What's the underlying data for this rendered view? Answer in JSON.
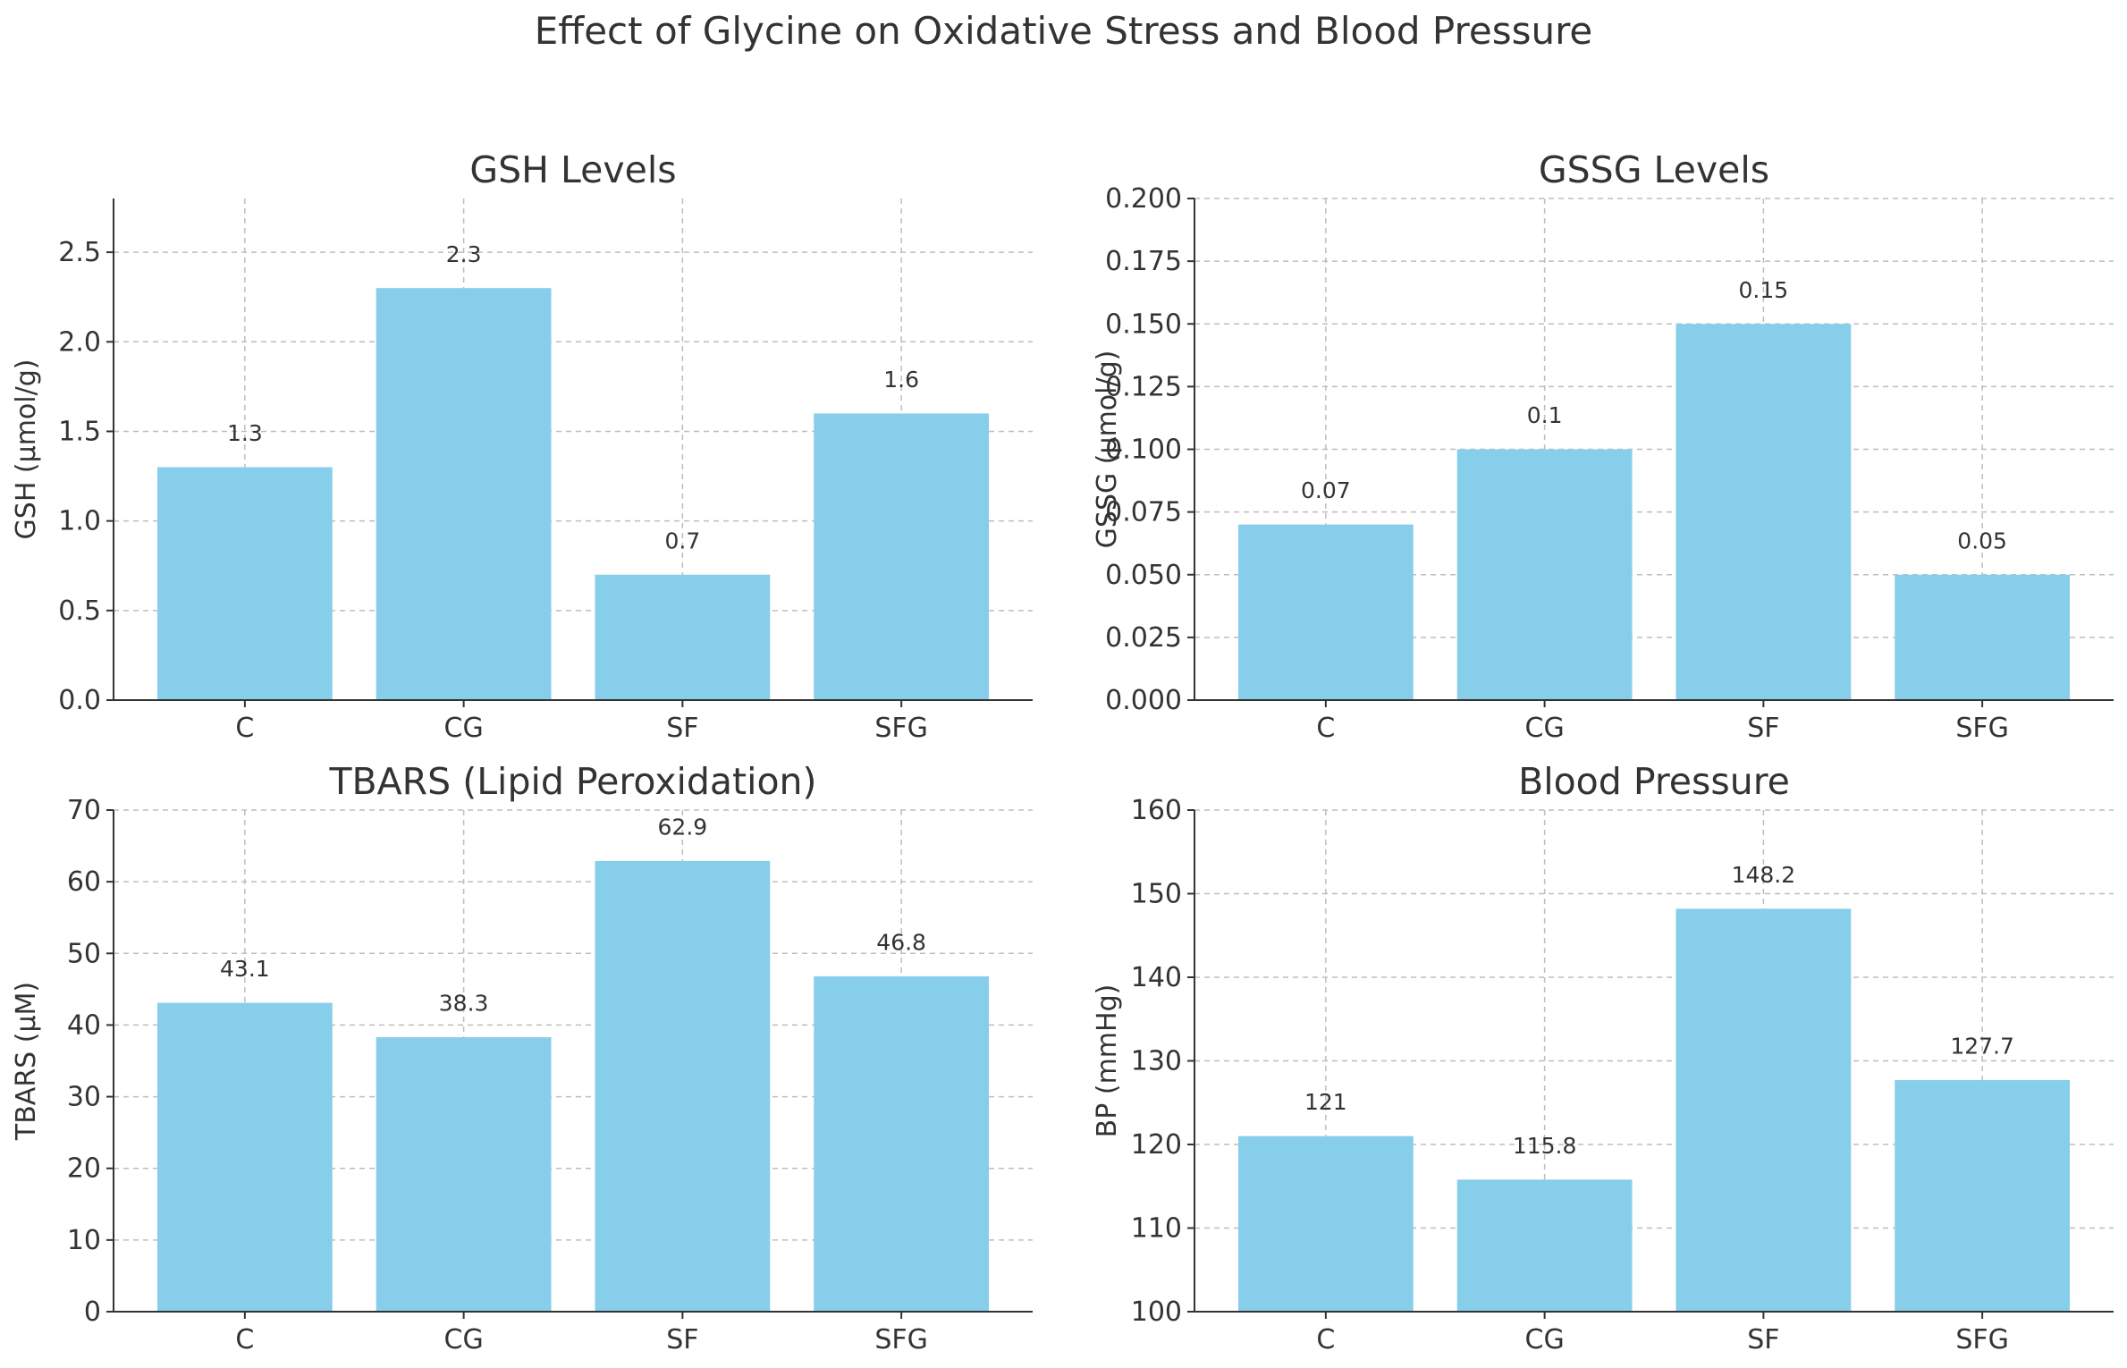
{
  "figure": {
    "title": "Effect of Glycine on Oxidative Stress and Blood Pressure"
  },
  "chart_data": [
    {
      "type": "bar",
      "title": "GSH Levels",
      "xlabel": "",
      "ylabel": "GSH (µmol/g)",
      "categories": [
        "C",
        "CG",
        "SF",
        "SFG"
      ],
      "values": [
        1.3,
        2.3,
        0.7,
        1.6
      ],
      "value_labels": [
        "1.3",
        "2.3",
        "0.7",
        "1.6"
      ],
      "ylim": [
        0,
        2.8
      ],
      "yticks": [
        0.0,
        0.5,
        1.0,
        1.5,
        2.0,
        2.5
      ],
      "ytick_labels": [
        "0.0",
        "0.5",
        "1.0",
        "1.5",
        "2.0",
        "2.5"
      ],
      "grid": true,
      "bar_color": "#87ceeb"
    },
    {
      "type": "bar",
      "title": "GSSG Levels",
      "xlabel": "",
      "ylabel": "GSSG (µmol/g)",
      "categories": [
        "C",
        "CG",
        "SF",
        "SFG"
      ],
      "values": [
        0.07,
        0.1,
        0.15,
        0.05
      ],
      "value_labels": [
        "0.07",
        "0.1",
        "0.15",
        "0.05"
      ],
      "ylim": [
        0,
        0.2
      ],
      "yticks": [
        0.0,
        0.025,
        0.05,
        0.075,
        0.1,
        0.125,
        0.15,
        0.175,
        0.2
      ],
      "ytick_labels": [
        "0.000",
        "0.025",
        "0.050",
        "0.075",
        "0.100",
        "0.125",
        "0.150",
        "0.175",
        "0.200"
      ],
      "grid": true,
      "bar_color": "#87ceeb"
    },
    {
      "type": "bar",
      "title": "TBARS (Lipid Peroxidation)",
      "xlabel": "",
      "ylabel": "TBARS (µM)",
      "categories": [
        "C",
        "CG",
        "SF",
        "SFG"
      ],
      "values": [
        43.1,
        38.3,
        62.9,
        46.8
      ],
      "value_labels": [
        "43.1",
        "38.3",
        "62.9",
        "46.8"
      ],
      "ylim": [
        0,
        70
      ],
      "yticks": [
        0,
        10,
        20,
        30,
        40,
        50,
        60,
        70
      ],
      "ytick_labels": [
        "0",
        "10",
        "20",
        "30",
        "40",
        "50",
        "60",
        "70"
      ],
      "grid": true,
      "bar_color": "#87ceeb"
    },
    {
      "type": "bar",
      "title": "Blood Pressure",
      "xlabel": "",
      "ylabel": "BP (mmHg)",
      "categories": [
        "C",
        "CG",
        "SF",
        "SFG"
      ],
      "values": [
        121,
        115.8,
        148.2,
        127.7
      ],
      "value_labels": [
        "121",
        "115.8",
        "148.2",
        "127.7"
      ],
      "ylim": [
        100,
        160
      ],
      "yticks": [
        100,
        110,
        120,
        130,
        140,
        150,
        160
      ],
      "ytick_labels": [
        "100",
        "110",
        "120",
        "130",
        "140",
        "150",
        "160"
      ],
      "grid": true,
      "bar_color": "#87ceeb"
    }
  ]
}
